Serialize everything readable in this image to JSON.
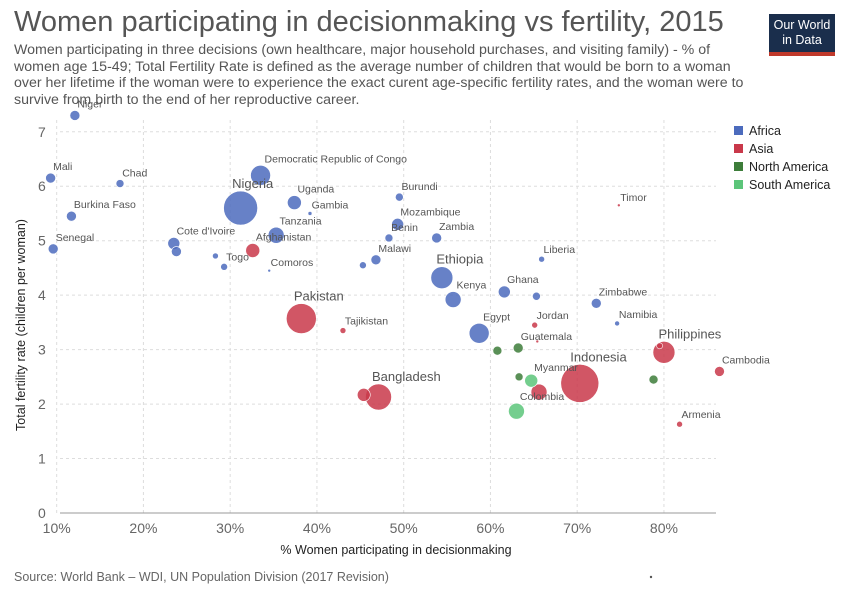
{
  "header": {
    "title": "Women participating in decisionmaking vs fertility, 2015",
    "subtitle": "Women participating in three decisions (own healthcare, major household purchases, and visiting family) - % of women age 15-49; Total Fertility Rate is defined as the average number of children that would be born to a woman over her lifetime if the woman were to experience the exact curent age-specific fertility rates, and the woman were to survive from birth to the end of her reproductive career."
  },
  "logo": {
    "line1": "Our World",
    "line2": "in Data",
    "bg_color": "#1a2e4c",
    "accent_color": "#c0392b"
  },
  "source": "Source: World Bank – WDI, UN Population Division (2017 Revision)",
  "chart_data": {
    "type": "scatter",
    "xlabel": "% Women participating in decisionmaking",
    "ylabel": "Total fertility rate (children per woman)",
    "xlim": [
      9,
      86
    ],
    "ylim": [
      0,
      7.4
    ],
    "x_ticks": [
      10,
      20,
      30,
      40,
      50,
      60,
      70,
      80
    ],
    "x_tick_labels": [
      "10%",
      "20%",
      "30%",
      "40%",
      "50%",
      "60%",
      "70%",
      "80%"
    ],
    "y_ticks": [
      0,
      1,
      2,
      3,
      4,
      5,
      6,
      7
    ],
    "y_tick_labels": [
      "0",
      "1",
      "2",
      "3",
      "4",
      "5",
      "6",
      "7"
    ],
    "grid": true,
    "legend_position": "top-right",
    "legend": [
      {
        "name": "Africa",
        "color": "#4c6bbd"
      },
      {
        "name": "Asia",
        "color": "#c9384a"
      },
      {
        "name": "North America",
        "color": "#3d7d3a"
      },
      {
        "name": "South America",
        "color": "#5cc57a"
      }
    ],
    "points": [
      {
        "label": "Niger",
        "x": 12.1,
        "y": 7.3,
        "region": "Africa",
        "size": 5
      },
      {
        "label": "Mali",
        "x": 9.3,
        "y": 6.15,
        "region": "Africa",
        "size": 5
      },
      {
        "label": "Chad",
        "x": 17.3,
        "y": 6.05,
        "region": "Africa",
        "size": 4
      },
      {
        "label": "Burkina Faso",
        "x": 11.7,
        "y": 5.45,
        "region": "Africa",
        "size": 5
      },
      {
        "label": "Senegal",
        "x": 9.6,
        "y": 4.85,
        "region": "Africa",
        "size": 5
      },
      {
        "label": "Cote d'Ivoire",
        "x": 23.5,
        "y": 4.95,
        "region": "Africa",
        "size": 6
      },
      {
        "label": "",
        "x": 23.8,
        "y": 4.8,
        "region": "Africa",
        "size": 5
      },
      {
        "label": "",
        "x": 28.3,
        "y": 4.72,
        "region": "Africa",
        "size": 3
      },
      {
        "label": "Togo",
        "x": 29.3,
        "y": 4.52,
        "region": "Africa",
        "size": 3.5
      },
      {
        "label": "Comoros",
        "x": 34.5,
        "y": 4.45,
        "region": "Africa",
        "size": 1.5
      },
      {
        "label": "Nigeria",
        "x": 31.2,
        "y": 5.6,
        "region": "Africa",
        "size": 17
      },
      {
        "label": "Democratic Republic of Congo",
        "x": 33.5,
        "y": 6.2,
        "region": "Africa",
        "size": 10
      },
      {
        "label": "Afghanistan",
        "x": 32.6,
        "y": 4.82,
        "region": "Asia",
        "size": 7
      },
      {
        "label": "Tanzania",
        "x": 35.3,
        "y": 5.1,
        "region": "Africa",
        "size": 8
      },
      {
        "label": "Uganda",
        "x": 37.4,
        "y": 5.7,
        "region": "Africa",
        "size": 7
      },
      {
        "label": "Gambia",
        "x": 39.2,
        "y": 5.5,
        "region": "Africa",
        "size": 2
      },
      {
        "label": "Pakistan",
        "x": 38.2,
        "y": 3.57,
        "region": "Asia",
        "size": 15
      },
      {
        "label": "Tajikistan",
        "x": 43.0,
        "y": 3.35,
        "region": "Asia",
        "size": 3
      },
      {
        "label": "Malawi",
        "x": 46.8,
        "y": 4.65,
        "region": "Africa",
        "size": 5
      },
      {
        "label": "",
        "x": 45.3,
        "y": 4.55,
        "region": "Africa",
        "size": 3.5
      },
      {
        "label": "Burundi",
        "x": 49.5,
        "y": 5.8,
        "region": "Africa",
        "size": 4
      },
      {
        "label": "Mozambique",
        "x": 49.3,
        "y": 5.3,
        "region": "Africa",
        "size": 6
      },
      {
        "label": "Benin",
        "x": 48.3,
        "y": 5.05,
        "region": "Africa",
        "size": 4
      },
      {
        "label": "Zambia",
        "x": 53.8,
        "y": 5.05,
        "region": "Africa",
        "size": 5
      },
      {
        "label": "Ethiopia",
        "x": 54.4,
        "y": 4.32,
        "region": "Africa",
        "size": 11
      },
      {
        "label": "Kenya",
        "x": 55.7,
        "y": 3.92,
        "region": "Africa",
        "size": 8
      },
      {
        "label": "Ghana",
        "x": 61.6,
        "y": 4.06,
        "region": "Africa",
        "size": 6
      },
      {
        "label": "",
        "x": 65.3,
        "y": 3.98,
        "region": "Africa",
        "size": 4
      },
      {
        "label": "Liberia",
        "x": 65.9,
        "y": 4.66,
        "region": "Africa",
        "size": 3
      },
      {
        "label": "Egypt",
        "x": 58.7,
        "y": 3.3,
        "region": "Africa",
        "size": 10
      },
      {
        "label": "Jordan",
        "x": 65.1,
        "y": 3.45,
        "region": "Asia",
        "size": 3
      },
      {
        "label": "Guatemala",
        "x": 63.2,
        "y": 3.03,
        "region": "North America",
        "size": 5
      },
      {
        "label": "",
        "x": 65.4,
        "y": 3.15,
        "region": "Asia",
        "size": 1.5
      },
      {
        "label": "",
        "x": 60.8,
        "y": 2.98,
        "region": "North America",
        "size": 4.5
      },
      {
        "label": "",
        "x": 63.3,
        "y": 2.5,
        "region": "North America",
        "size": 4
      },
      {
        "label": "Myanmar",
        "x": 64.7,
        "y": 2.43,
        "region": "South America",
        "size": 6.5
      },
      {
        "label": "",
        "x": 65.6,
        "y": 2.22,
        "region": "Asia",
        "size": 8
      },
      {
        "label": "Colombia",
        "x": 63.0,
        "y": 1.87,
        "region": "South America",
        "size": 8
      },
      {
        "label": "Bangladesh",
        "x": 47.1,
        "y": 2.13,
        "region": "Asia",
        "size": 13
      },
      {
        "label": "",
        "x": 45.4,
        "y": 2.17,
        "region": "Asia",
        "size": 6.5
      },
      {
        "label": "Indonesia",
        "x": 70.3,
        "y": 2.38,
        "region": "Asia",
        "size": 19
      },
      {
        "label": "Timor",
        "x": 74.8,
        "y": 5.65,
        "region": "Asia",
        "size": 1.5
      },
      {
        "label": "Zimbabwe",
        "x": 72.2,
        "y": 3.85,
        "region": "Africa",
        "size": 5
      },
      {
        "label": "Namibia",
        "x": 74.6,
        "y": 3.48,
        "region": "Africa",
        "size": 2.5
      },
      {
        "label": "Philippines",
        "x": 80.0,
        "y": 2.95,
        "region": "Asia",
        "size": 11
      },
      {
        "label": "",
        "x": 79.5,
        "y": 3.07,
        "region": "Asia",
        "size": 3
      },
      {
        "label": "Cambodia",
        "x": 86.4,
        "y": 2.6,
        "region": "Asia",
        "size": 5
      },
      {
        "label": "",
        "x": 78.8,
        "y": 2.45,
        "region": "North America",
        "size": 4.5
      },
      {
        "label": "Armenia",
        "x": 81.8,
        "y": 1.63,
        "region": "Asia",
        "size": 3
      }
    ]
  }
}
